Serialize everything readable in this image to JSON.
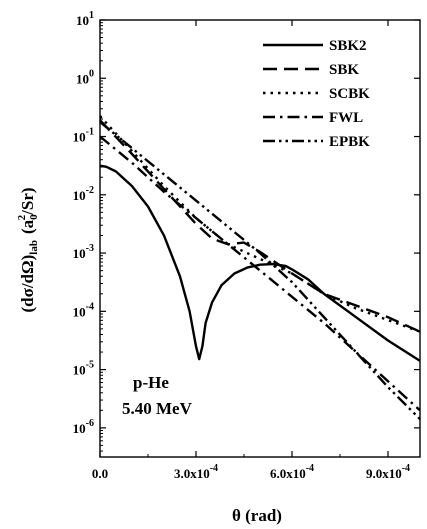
{
  "chart_data": {
    "type": "line",
    "xlabel": "θ (rad)",
    "ylabel_parts": {
      "main": "(dσ/dΩ)",
      "sub": "lab",
      "units_open": "(a",
      "units_sub": "0",
      "units_sup": "2",
      "units_close": "/Sr)"
    },
    "xlim": [
      0,
      0.001
    ],
    "ylim_log10": [
      -6.5,
      1
    ],
    "y_scale": "log",
    "x_ticks": [
      0,
      0.0003,
      0.0006,
      0.0009
    ],
    "x_tick_parts": [
      {
        "m": "0.0",
        "e": ""
      },
      {
        "m": "3.0x10",
        "e": "-4"
      },
      {
        "m": "6.0x10",
        "e": "-4"
      },
      {
        "m": "9.0x10",
        "e": "-4"
      }
    ],
    "y_tick_exponents": [
      1,
      0,
      -1,
      -2,
      -3,
      -4,
      -5,
      -6
    ],
    "y_tick_base": "10",
    "legend_position": "top-right",
    "annotation": [
      "p-He",
      "5.40 MeV"
    ],
    "series": [
      {
        "name": "SBK2",
        "dash": "solid",
        "x": [
          0,
          2e-05,
          5e-05,
          0.0001,
          0.00015,
          0.0002,
          0.00025,
          0.00028,
          0.0003,
          0.00031,
          0.00032,
          0.00033,
          0.00035,
          0.00038,
          0.00042,
          0.00046,
          0.0005,
          0.00054,
          0.00058,
          0.0006,
          0.00065,
          0.0007,
          0.0008,
          0.0009,
          0.001
        ],
        "y_log10": [
          -1.5,
          -1.52,
          -1.6,
          -1.85,
          -2.2,
          -2.7,
          -3.4,
          -4.0,
          -4.6,
          -4.82,
          -4.6,
          -4.2,
          -3.85,
          -3.55,
          -3.35,
          -3.25,
          -3.2,
          -3.19,
          -3.22,
          -3.28,
          -3.45,
          -3.7,
          -4.1,
          -4.5,
          -4.85
        ]
      },
      {
        "name": "SBK",
        "dash": "long-dash",
        "x": [
          0,
          0.0001,
          0.0002,
          0.0003,
          0.00035,
          0.0004,
          0.00045,
          0.0005,
          0.0006,
          0.0007,
          0.0008,
          0.0009,
          0.001
        ],
        "y_log10": [
          -0.72,
          -1.3,
          -1.9,
          -2.5,
          -2.75,
          -2.85,
          -2.82,
          -2.98,
          -3.35,
          -3.7,
          -3.9,
          -4.1,
          -4.35
        ]
      },
      {
        "name": "SCBK",
        "dash": "dotted",
        "x": [
          0,
          0.0001,
          0.0002,
          0.0003,
          0.0004,
          0.0005,
          0.0006,
          0.0007,
          0.0008,
          0.0009,
          0.001
        ],
        "y_log10": [
          -0.65,
          -1.25,
          -1.85,
          -2.4,
          -2.85,
          -3.1,
          -3.35,
          -3.7,
          -3.95,
          -4.15,
          -4.35
        ]
      },
      {
        "name": "FWL",
        "dash": "dash-dot",
        "x": [
          0,
          0.0001,
          0.0002,
          0.0003,
          0.0004,
          0.0005,
          0.0006,
          0.0007,
          0.0008,
          0.0009,
          0.001
        ],
        "y_log10": [
          -1.0,
          -1.45,
          -1.95,
          -2.4,
          -2.85,
          -3.3,
          -3.75,
          -4.2,
          -4.7,
          -5.2,
          -5.7
        ]
      },
      {
        "name": "EPBK",
        "dash": "dash-dot-dot",
        "x": [
          0,
          0.0001,
          0.0002,
          0.0003,
          0.0004,
          0.0005,
          0.0006,
          0.0007,
          0.0008,
          0.0009,
          0.001
        ],
        "y_log10": [
          -0.75,
          -1.2,
          -1.65,
          -2.1,
          -2.55,
          -3.0,
          -3.5,
          -4.1,
          -4.7,
          -5.3,
          -5.85
        ]
      }
    ]
  }
}
